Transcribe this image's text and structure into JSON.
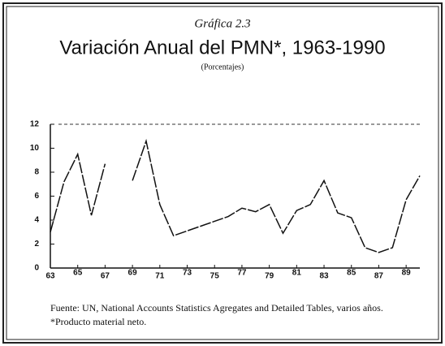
{
  "chart_data": {
    "type": "line",
    "subtitle": "Gráfica 2.3",
    "title": "Variación Anual del PMN*, 1963-1990",
    "unit_label": "(Porcentajes)",
    "source": "Fuente: UN, National Accounts Statistics Agregates and Detailed Tables, varios años.",
    "note": "*Producto material neto.",
    "x": [
      63,
      64,
      65,
      66,
      67,
      68,
      69,
      70,
      71,
      72,
      73,
      74,
      75,
      76,
      77,
      78,
      79,
      80,
      81,
      82,
      83,
      84,
      85,
      86,
      87,
      88,
      89,
      90
    ],
    "series": [
      {
        "color": "#111111",
        "values": [
          3.0,
          7.2,
          9.5,
          4.4,
          8.7,
          null,
          7.3,
          10.6,
          5.3,
          2.7,
          3.1,
          3.5,
          3.9,
          4.3,
          5.0,
          4.7,
          5.3,
          2.9,
          4.8,
          5.3,
          7.3,
          4.6,
          4.2,
          1.7,
          1.3,
          1.7,
          5.7,
          7.7
        ]
      }
    ],
    "xlim": [
      63,
      90
    ],
    "xticks": [
      63,
      65,
      67,
      69,
      71,
      73,
      75,
      77,
      79,
      81,
      83,
      85,
      87,
      89
    ],
    "ylim": [
      0,
      12
    ],
    "yticks": [
      0,
      2,
      4,
      6,
      8,
      10,
      12
    ]
  }
}
